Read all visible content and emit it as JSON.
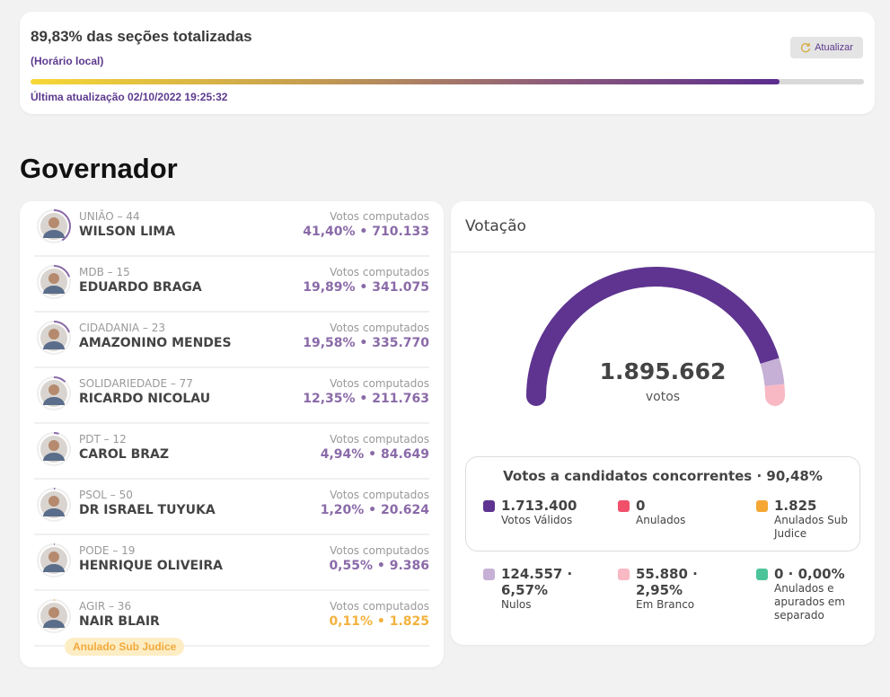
{
  "status": {
    "title": "89,83% das seções totalizadas",
    "subtitle": "(Horário local)",
    "refresh_label": "Atualizar",
    "progress_percent": 89.83,
    "last_update": "Última atualização 02/10/2022 19:25:32"
  },
  "section_title": "Governador",
  "candidates": [
    {
      "party": "UNIÃO – 44",
      "name": "WILSON LIMA",
      "votes_label": "Votos computados",
      "result": "41,40% • 710.133",
      "pct": 41.4,
      "color": "#8a6aa8"
    },
    {
      "party": "MDB – 15",
      "name": "EDUARDO BRAGA",
      "votes_label": "Votos computados",
      "result": "19,89% • 341.075",
      "pct": 19.89,
      "color": "#8a6aa8"
    },
    {
      "party": "CIDADANIA – 23",
      "name": "AMAZONINO MENDES",
      "votes_label": "Votos computados",
      "result": "19,58% • 335.770",
      "pct": 19.58,
      "color": "#8a6aa8"
    },
    {
      "party": "SOLIDARIEDADE – 77",
      "name": "RICARDO NICOLAU",
      "votes_label": "Votos computados",
      "result": "12,35% • 211.763",
      "pct": 12.35,
      "color": "#8a6aa8"
    },
    {
      "party": "PDT – 12",
      "name": "CAROL BRAZ",
      "votes_label": "Votos computados",
      "result": "4,94% • 84.649",
      "pct": 4.94,
      "color": "#8a6aa8"
    },
    {
      "party": "PSOL – 50",
      "name": "DR ISRAEL TUYUKA",
      "votes_label": "Votos computados",
      "result": "1,20% • 20.624",
      "pct": 1.2,
      "color": "#8a6aa8"
    },
    {
      "party": "PODE – 19",
      "name": "HENRIQUE OLIVEIRA",
      "votes_label": "Votos computados",
      "result": "0,55% • 9.386",
      "pct": 0.55,
      "color": "#8a6aa8"
    },
    {
      "party": "AGIR – 36",
      "name": "NAIR BLAIR",
      "votes_label": "Votos computados",
      "result": "0,11% • 1.825",
      "pct": 0.11,
      "color": "#f2b23e"
    }
  ],
  "badge": "Anulado Sub Judice",
  "votacao": {
    "title": "Votação",
    "total": "1.895.662",
    "total_label": "votos",
    "gauge": [
      {
        "pct": 90.48,
        "color": "#5e3490"
      },
      {
        "pct": 6.57,
        "color": "#c6b0d5"
      },
      {
        "pct": 2.95,
        "color": "#f8b8c4"
      }
    ],
    "box_title": "Votos a candidatos concorrentes · 90,48%",
    "items": [
      {
        "value": "1.713.400",
        "label": "Votos Válidos",
        "color": "#5e3490"
      },
      {
        "value": "0",
        "label": "Anulados",
        "color": "#f0506a"
      },
      {
        "value": "1.825",
        "label": "Anulados Sub Judice",
        "color": "#f5a733"
      },
      {
        "value": "124.557 · 6,57%",
        "label": "Nulos",
        "color": "#c6b0d5"
      },
      {
        "value": "55.880 · 2,95%",
        "label": "Em Branco",
        "color": "#f8b8c4"
      },
      {
        "value": "0 · 0,00%",
        "label": "Anulados e apurados em separado",
        "color": "#4cc49a"
      }
    ]
  }
}
